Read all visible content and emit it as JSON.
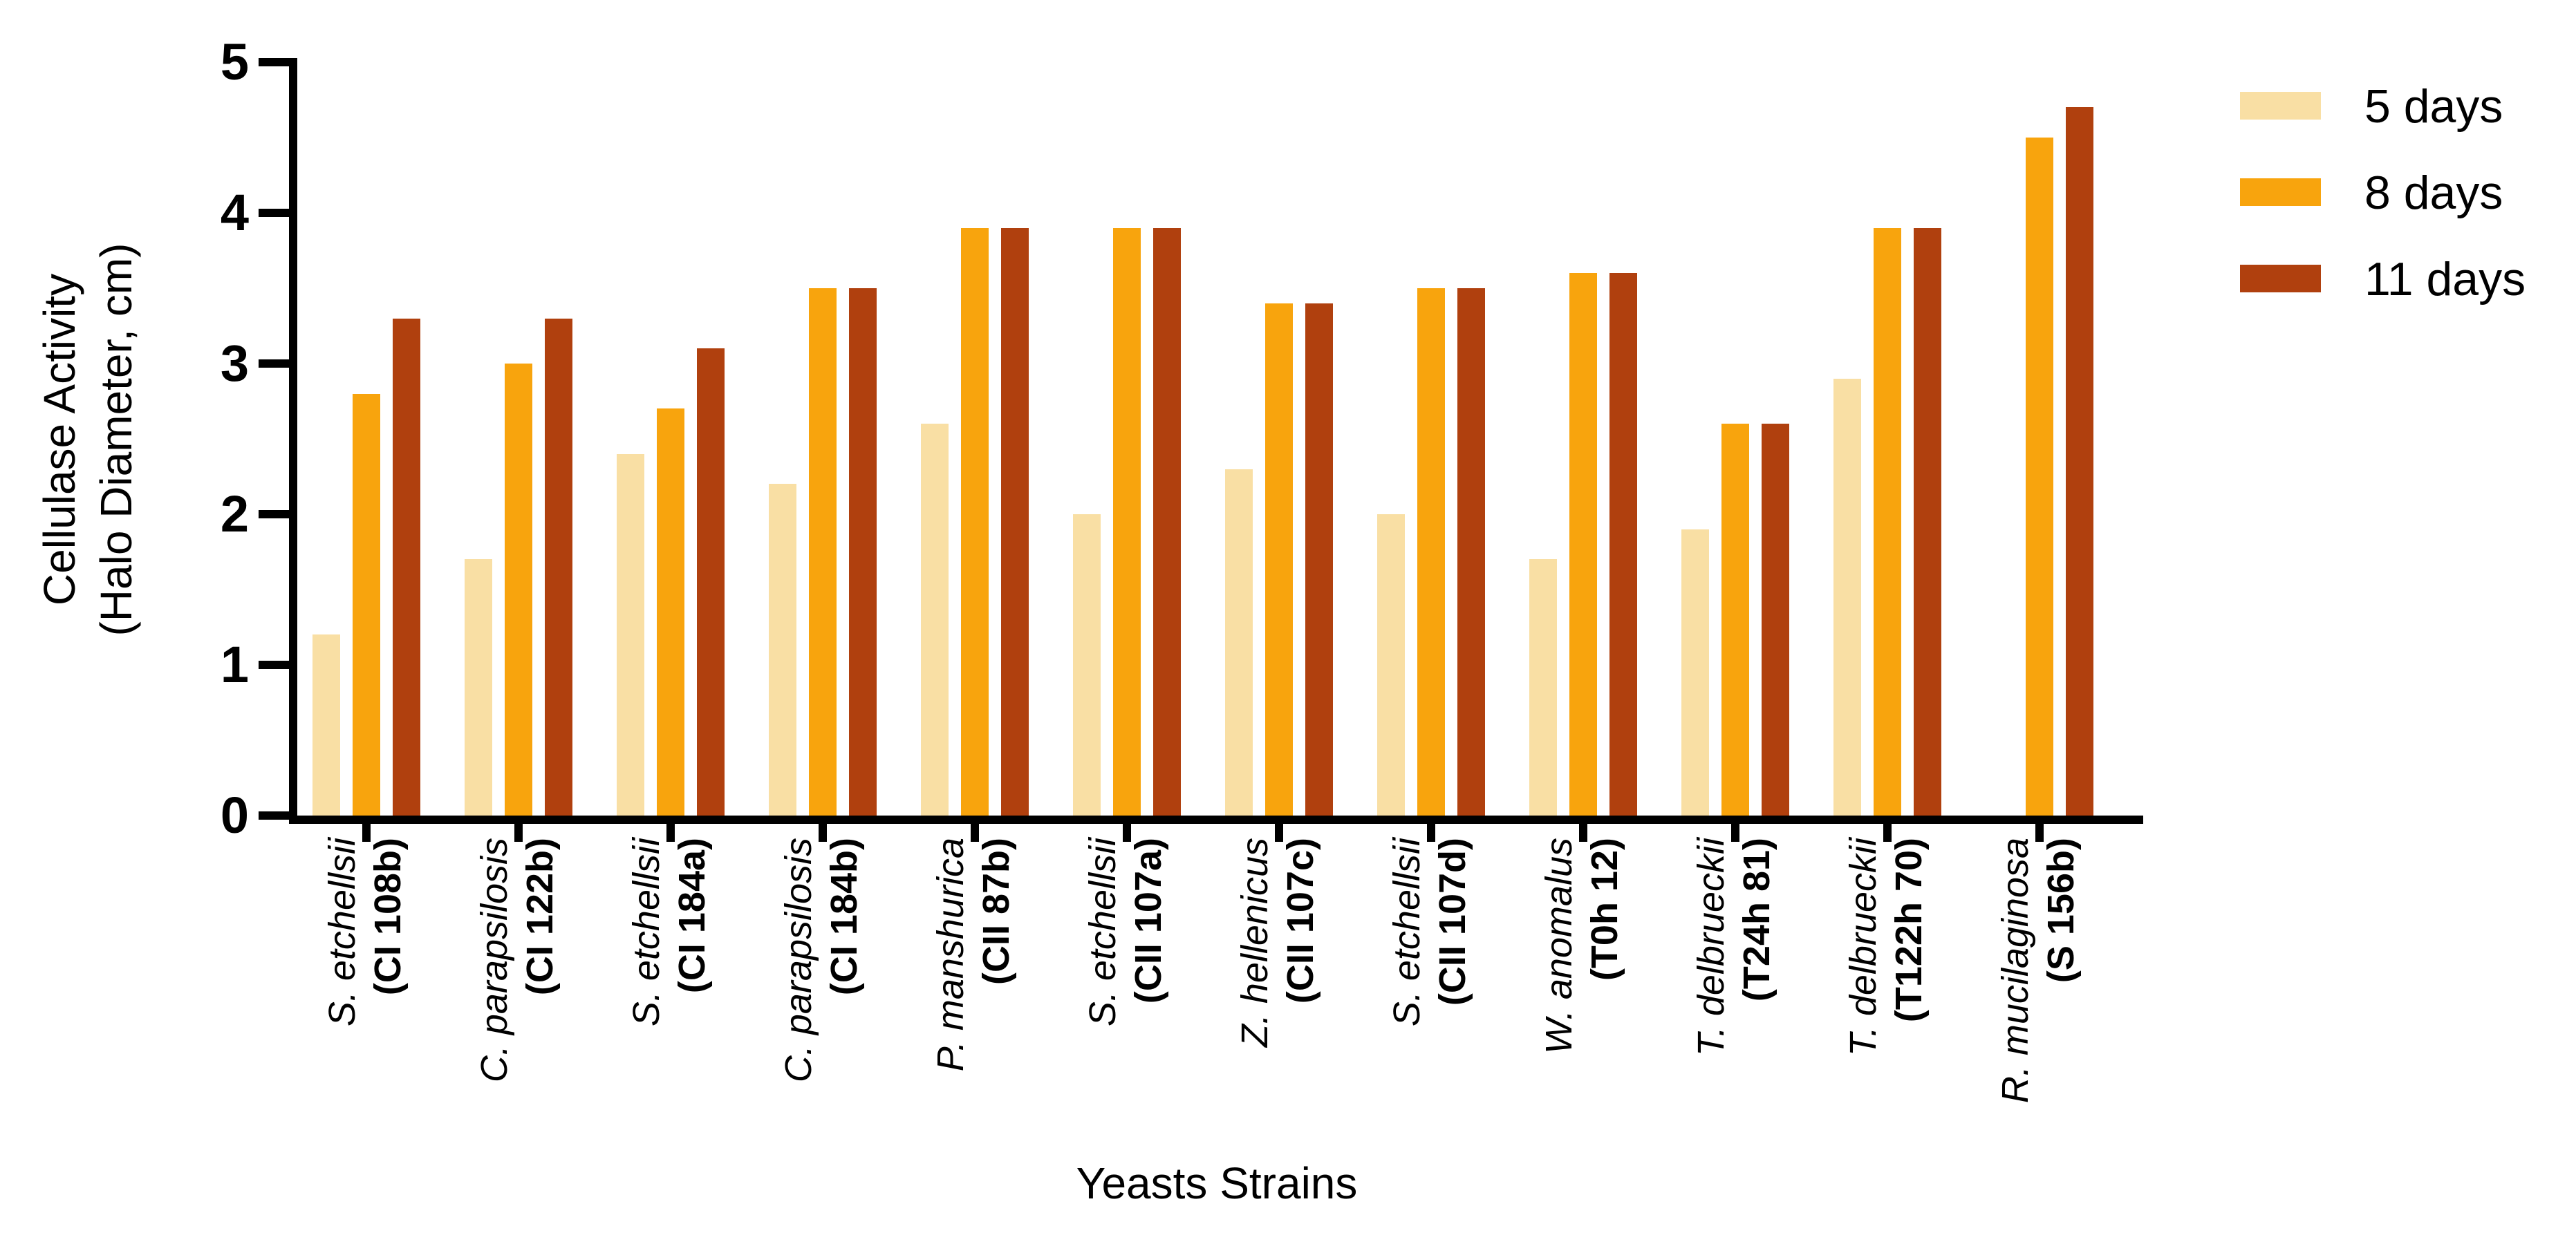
{
  "chart_data": {
    "type": "bar",
    "title": "",
    "xlabel": "Yeasts Strains",
    "ylabel_lines": [
      "Cellulase Activity",
      "(Halo Diameter, cm)"
    ],
    "ylim": [
      0,
      5
    ],
    "yticks": [
      "0",
      "1",
      "2",
      "3",
      "4",
      "5"
    ],
    "grid": false,
    "legend_position": "top-right",
    "axis_color": "#000000",
    "background": "#ffffff",
    "categories": [
      {
        "species": "S. etchellsii",
        "code": "(CI 108b)"
      },
      {
        "species": "C. parapsilosis",
        "code": "(CI 122b)"
      },
      {
        "species": "S. etchellsii",
        "code": "(CI 184a)"
      },
      {
        "species": "C. parapsilosis",
        "code": "(CI 184b)"
      },
      {
        "species": "P. manshurica",
        "code": "(CII 87b)"
      },
      {
        "species": "S. etchellsii",
        "code": "(CII 107a)"
      },
      {
        "species": "Z. hellenicus",
        "code": "(CII 107c)"
      },
      {
        "species": "S. etchellsii",
        "code": "(CII 107d)"
      },
      {
        "species": "W. anomalus",
        "code": "(T0h 12)"
      },
      {
        "species": "T. delbrueckii",
        "code": "(T24h 81)"
      },
      {
        "species": "T. delbrueckii",
        "code": "(T122h 70)"
      },
      {
        "species": "R. mucilaginosa",
        "code": "(S 156b)"
      }
    ],
    "series": [
      {
        "name": "5 days",
        "color": "#F9DFA4",
        "values": [
          1.2,
          1.7,
          2.4,
          2.2,
          2.6,
          2.0,
          2.3,
          2.0,
          1.7,
          1.9,
          2.9,
          null
        ]
      },
      {
        "name": "8 days",
        "color": "#F8A40D",
        "values": [
          2.8,
          3.0,
          2.7,
          3.5,
          3.9,
          3.9,
          3.4,
          3.5,
          3.6,
          2.6,
          3.9,
          4.5
        ]
      },
      {
        "name": "11 days",
        "color": "#B0400E",
        "values": [
          3.3,
          3.3,
          3.1,
          3.5,
          3.9,
          3.9,
          3.4,
          3.5,
          3.6,
          2.6,
          3.9,
          4.7
        ]
      }
    ]
  }
}
